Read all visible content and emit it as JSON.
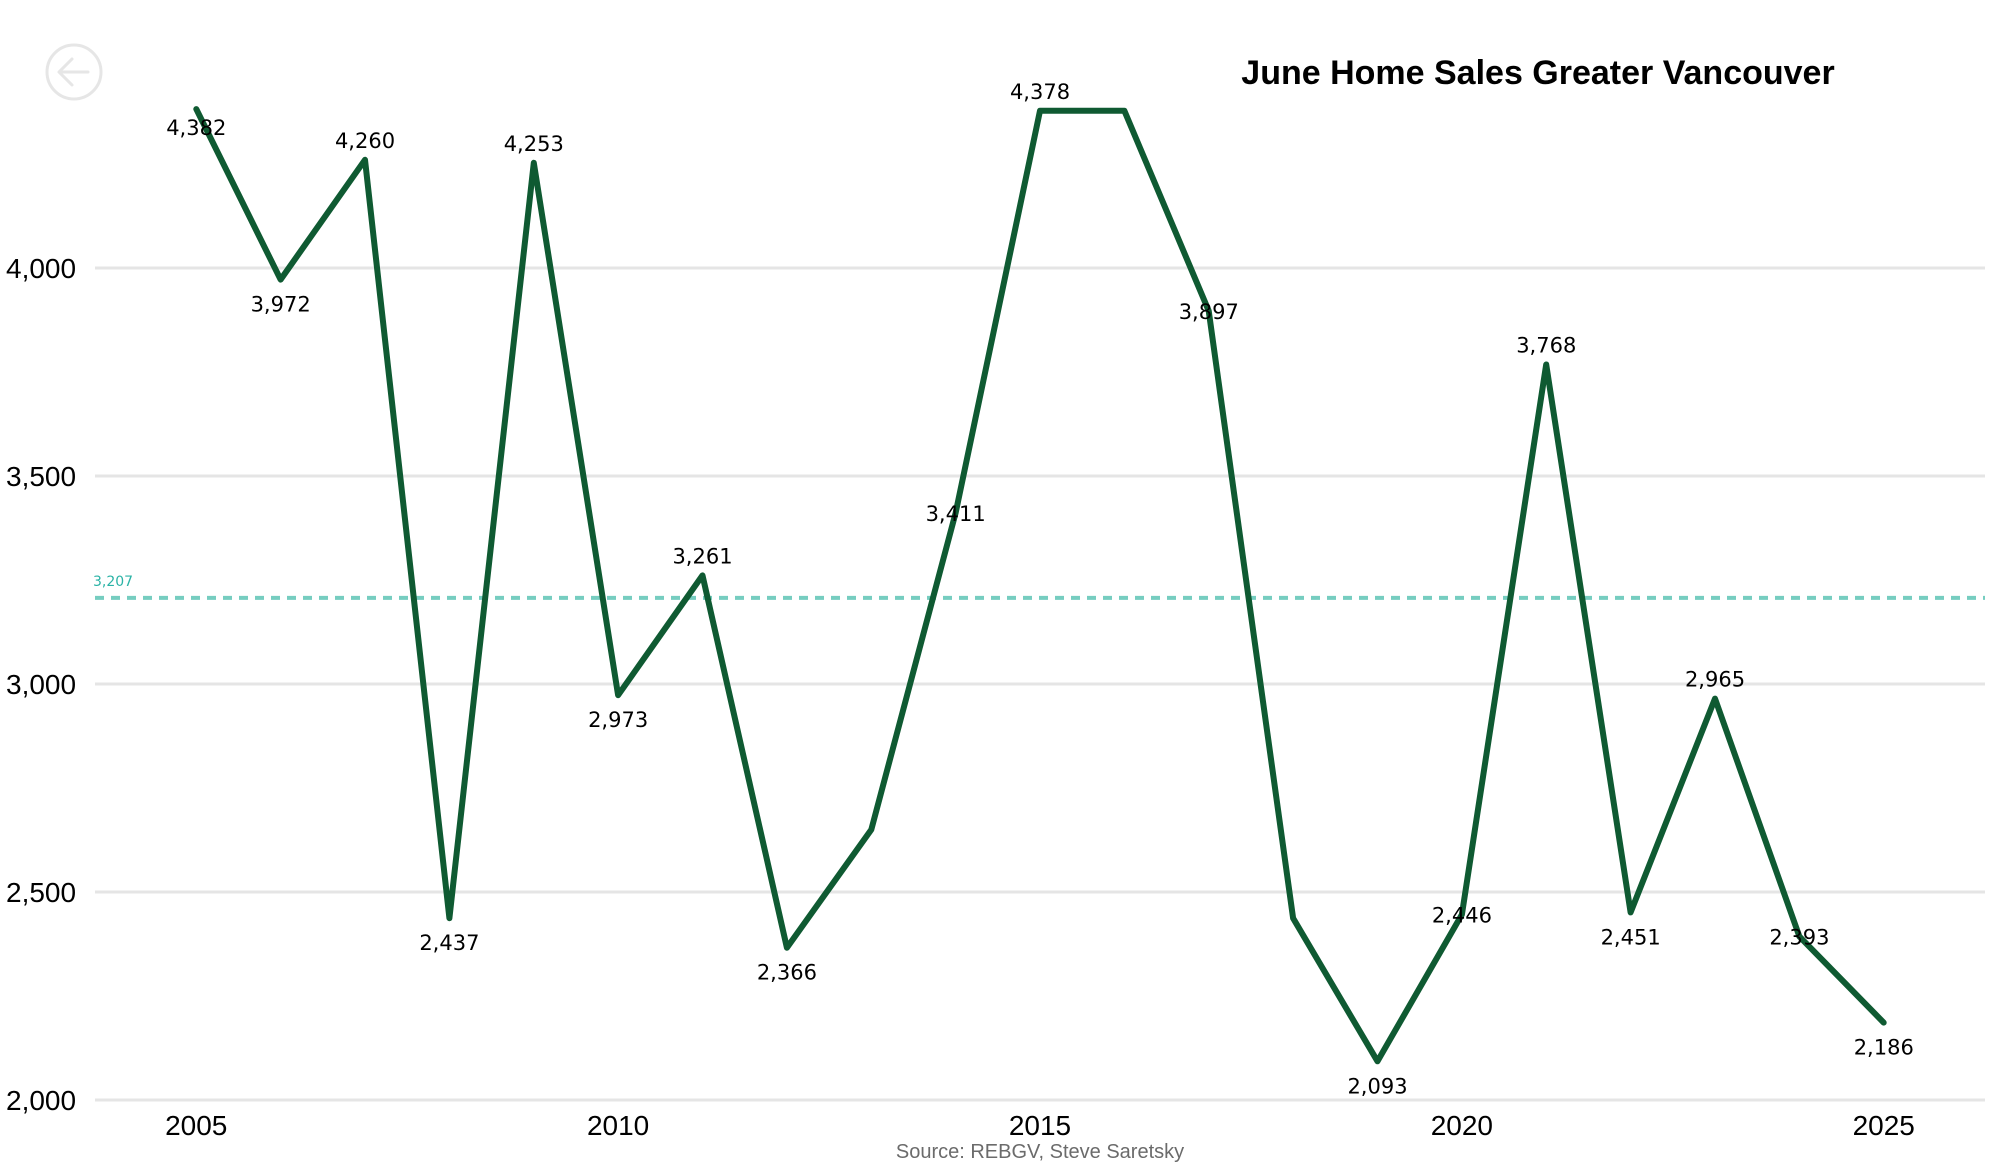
{
  "chart_data": {
    "type": "line",
    "title": "June Home Sales Greater Vancouver",
    "source": "Source: REBGV, Steve Saretsky",
    "x": [
      2005,
      2006,
      2007,
      2008,
      2009,
      2010,
      2011,
      2012,
      2013,
      2014,
      2015,
      2016,
      2017,
      2018,
      2019,
      2020,
      2021,
      2022,
      2023,
      2024,
      2025
    ],
    "series": [
      {
        "name": "",
        "values": [
          4382,
          3972,
          4260,
          2437,
          4253,
          2973,
          3261,
          2366,
          2650,
          3411,
          4378,
          4378,
          3897,
          2437,
          2093,
          2446,
          3768,
          2451,
          2965,
          2393,
          2186
        ],
        "data_labels": [
          "4,382",
          "3,972",
          "4,260",
          "2,437",
          "4,253",
          "2,973",
          "3,261",
          "2,366",
          null,
          "3,411",
          "4,378",
          null,
          "3,897",
          null,
          "2,093",
          "2,446",
          "3,768",
          "2,451",
          "2,965",
          "2,393",
          "2,186"
        ],
        "color": "#0f5a32"
      }
    ],
    "average": {
      "value": 3207,
      "label": "3,207",
      "color": "#76cdc0",
      "label_color": "#2bb3a6"
    },
    "xticks": [
      2005,
      2010,
      2015,
      2020,
      2025
    ],
    "yticks": [
      2000,
      2500,
      3000,
      3500,
      4000
    ],
    "ytick_labels": [
      "2,000",
      "2,500",
      "3,000",
      "3,500",
      "4,000"
    ],
    "xlim": [
      2003.8,
      2026.2
    ],
    "ylim": [
      2000,
      4500
    ],
    "grid": true,
    "legend": "none",
    "gridline_color": "#e5e5e5"
  },
  "back_button": {
    "icon": "back-arrow-icon",
    "color": "#e6e6e6"
  }
}
